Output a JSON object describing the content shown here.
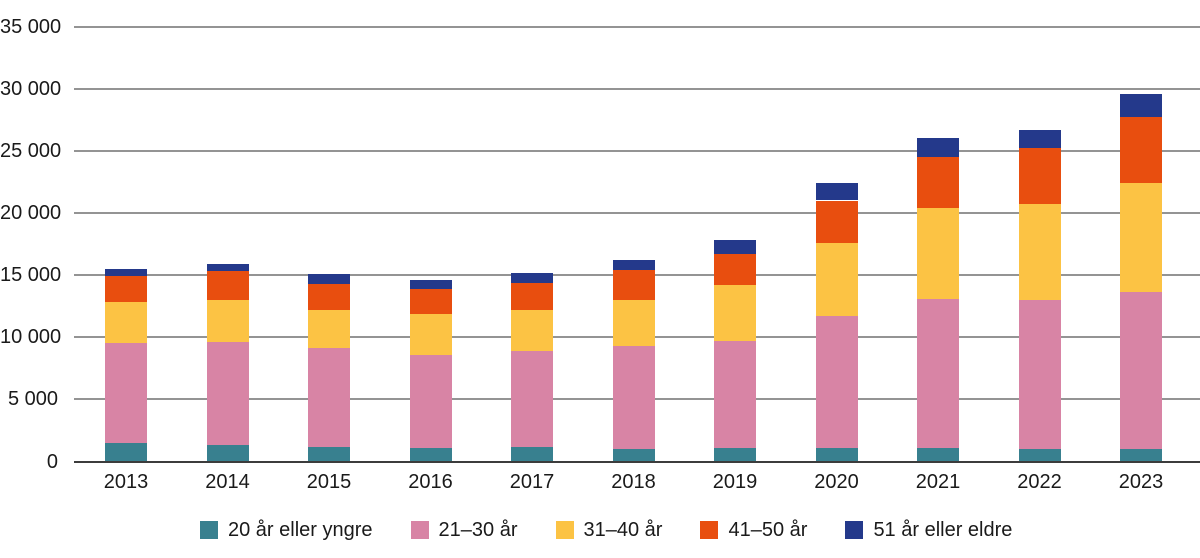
{
  "chart_data": {
    "type": "bar",
    "stacked": true,
    "title": "",
    "xlabel": "",
    "ylabel": "",
    "categories": [
      "2013",
      "2014",
      "2015",
      "2016",
      "2017",
      "2018",
      "2019",
      "2020",
      "2021",
      "2022",
      "2023"
    ],
    "series": [
      {
        "name": "20 år eller yngre",
        "color": "#38808F",
        "values": [
          1500,
          1300,
          1200,
          1100,
          1200,
          1000,
          1100,
          1100,
          1100,
          1000,
          1000
        ]
      },
      {
        "name": "21–30 år",
        "color": "#D884A5",
        "values": [
          8000,
          8300,
          7900,
          7500,
          7700,
          8300,
          8600,
          10600,
          12000,
          12000,
          12600
        ]
      },
      {
        "name": "31–40 år",
        "color": "#FCC344",
        "values": [
          3300,
          3400,
          3100,
          3300,
          3300,
          3700,
          4500,
          5900,
          7300,
          7700,
          8800
        ]
      },
      {
        "name": "41–50 år",
        "color": "#E84E0F",
        "values": [
          2100,
          2300,
          2100,
          2000,
          2200,
          2400,
          2500,
          3400,
          4100,
          4500,
          5300
        ]
      },
      {
        "name": "51 år eller eldre",
        "color": "#24398B",
        "values": [
          600,
          600,
          800,
          700,
          800,
          800,
          1100,
          1400,
          1500,
          1500,
          1900
        ]
      }
    ],
    "stack_totals": [
      15500,
      15900,
      15100,
      14600,
      15200,
      16200,
      17800,
      22400,
      26000,
      26700,
      29600
    ],
    "ylim": [
      0,
      35000
    ],
    "yticks": [
      0,
      5000,
      10000,
      15000,
      20000,
      25000,
      30000,
      35000
    ],
    "ytick_labels": [
      "0",
      "5 000",
      "10 000",
      "15 000",
      "20 000",
      "25 000",
      "30 000",
      "35 000"
    ],
    "grid": true,
    "legend_position": "bottom"
  },
  "colors": {
    "gridline": "#949494",
    "zero_line": "#3c3c3c",
    "background": "#ffffff",
    "text": "#1a1a1a"
  }
}
